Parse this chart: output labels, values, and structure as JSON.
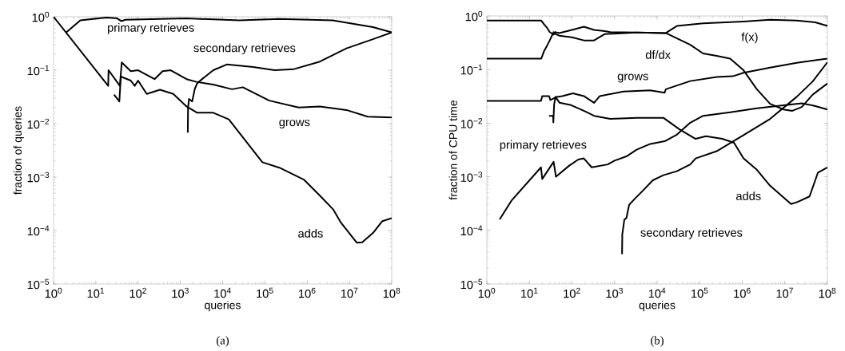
{
  "chart_data": [
    {
      "type": "line",
      "xlabel": "queries",
      "ylabel": "fraction of queries",
      "log": "xy",
      "annotations": [
        "(a)"
      ],
      "xlim": [
        1,
        100000000
      ],
      "ylim": [
        1e-05,
        1
      ],
      "xticks": [
        {
          "value": 1,
          "label": "10$^{0}$"
        },
        {
          "value": 10,
          "label": "10$^{1}$"
        },
        {
          "value": 100,
          "label": "10$^{2}$"
        },
        {
          "value": 1000,
          "label": "10$^{3}$"
        },
        {
          "value": 10000,
          "label": "10$^{4}$"
        },
        {
          "value": 100000,
          "label": "10$^{5}$"
        },
        {
          "value": 1000000,
          "label": "10$^{6}$"
        },
        {
          "value": 10000000,
          "label": "10$^{7}$"
        },
        {
          "value": 100000000,
          "label": "10$^{8}$"
        }
      ],
      "yticks": [
        {
          "value": 1e-05,
          "label": "10$^{−5}$"
        },
        {
          "value": 0.0001,
          "label": "10$^{−4}$"
        },
        {
          "value": 0.001,
          "label": "10$^{−3}$"
        },
        {
          "value": 0.01,
          "label": "10$^{−2}$"
        },
        {
          "value": 0.1,
          "label": "10$^{−1}$"
        },
        {
          "value": 1,
          "label": "10$^{0}$"
        }
      ],
      "series": [
        {
          "name": "primary retrieves",
          "color": "#000000",
          "x": [
            2,
            4.3,
            18,
            32,
            40,
            50,
            1400,
            25000,
            220000,
            4000000,
            36000000,
            100000000
          ],
          "values": [
            0.51,
            0.86,
            0.97,
            0.93,
            0.83,
            0.88,
            0.93,
            0.86,
            0.91,
            0.86,
            0.64,
            0.51
          ]
        },
        {
          "name": "secondary retrieves",
          "color": "#000000",
          "x": [
            1500,
            1520,
            1600,
            1900,
            2200,
            2500,
            3400,
            6000,
            12500,
            53000,
            170000,
            470000,
            2000000,
            8500000,
            36000000,
            100000000
          ],
          "values": [
            0.0068,
            0.02,
            0.029,
            0.026,
            0.045,
            0.057,
            0.07,
            0.1,
            0.128,
            0.115,
            0.1,
            0.104,
            0.145,
            0.256,
            0.38,
            0.51
          ]
        },
        {
          "name": "grows",
          "color": "#000000",
          "x": [
            1,
            19.6,
            20,
            37,
            41,
            67,
            100,
            245,
            380,
            590,
            1400,
            2500,
            6000,
            16600,
            30000,
            127000,
            630000,
            2000000,
            8500000,
            27000000,
            100000000
          ],
          "values": [
            1,
            0.051,
            0.1,
            0.051,
            0.14,
            0.096,
            0.1,
            0.068,
            0.096,
            0.1,
            0.068,
            0.06,
            0.054,
            0.044,
            0.048,
            0.027,
            0.02,
            0.021,
            0.018,
            0.0135,
            0.013
          ]
        },
        {
          "name": "adds",
          "color": "#000000",
          "x": [
            27,
            36,
            39,
            67,
            83,
            100,
            160,
            330,
            680,
            1400,
            2500,
            6000,
            14000,
            87000,
            220000,
            830000,
            2000000,
            4100000,
            6300000,
            15000000,
            20000000,
            36000000,
            60000000,
            100000000
          ],
          "values": [
            0.035,
            0.026,
            0.076,
            0.064,
            0.051,
            0.064,
            0.036,
            0.043,
            0.036,
            0.021,
            0.016,
            0.016,
            0.012,
            0.0019,
            0.0015,
            0.0009,
            0.00045,
            0.00025,
            0.00014,
            5.9e-05,
            6e-05,
            9e-05,
            0.00015,
            0.00017
          ]
        }
      ]
    },
    {
      "type": "line",
      "xlabel": "queries",
      "ylabel": "fraction of CPU time",
      "log": "xy",
      "annotations": [
        "(b)"
      ],
      "xlim": [
        1,
        100000000
      ],
      "ylim": [
        1e-05,
        1
      ],
      "xticks": [
        {
          "value": 1,
          "label": "10$^{0}$"
        },
        {
          "value": 10,
          "label": "10$^{1}$"
        },
        {
          "value": 100,
          "label": "10$^{2}$"
        },
        {
          "value": 1000,
          "label": "10$^{3}$"
        },
        {
          "value": 10000,
          "label": "10$^{4}$"
        },
        {
          "value": 100000,
          "label": "10$^{5}$"
        },
        {
          "value": 1000000,
          "label": "10$^{6}$"
        },
        {
          "value": 10000000,
          "label": "10$^{7}$"
        },
        {
          "value": 100000000,
          "label": "10$^{8}$"
        }
      ],
      "yticks": [
        {
          "value": 1e-05,
          "label": "10$^{−5}$"
        },
        {
          "value": 0.0001,
          "label": "10$^{−4}$"
        },
        {
          "value": 0.001,
          "label": "10$^{−3}$"
        },
        {
          "value": 0.01,
          "label": "10$^{−2}$"
        },
        {
          "value": 0.1,
          "label": "10$^{−1}$"
        },
        {
          "value": 1,
          "label": "10$^{0}$"
        }
      ],
      "series": [
        {
          "name": "f(x)",
          "color": "#000000",
          "x": [
            1,
            19,
            22,
            26,
            30,
            37,
            40,
            50,
            100,
            190,
            330,
            590,
            790,
            3300,
            16000,
            29000,
            120000,
            1070000,
            4500000,
            19000000,
            52000000,
            100000000
          ],
          "values": [
            0.82,
            0.82,
            0.7,
            0.6,
            0.5,
            0.45,
            0.5,
            0.48,
            0.55,
            0.63,
            0.55,
            0.52,
            0.5,
            0.49,
            0.48,
            0.65,
            0.73,
            0.79,
            0.85,
            0.82,
            0.76,
            0.65
          ]
        },
        {
          "name": "df/dx",
          "color": "#000000",
          "x": [
            1,
            19,
            22,
            26,
            30,
            37,
            40,
            50,
            100,
            190,
            330,
            590,
            3300,
            16000,
            60000,
            120000,
            250000,
            520000,
            1070000,
            2200000,
            4500000,
            9300000,
            15000000,
            25000000,
            45000000,
            100000000
          ],
          "values": [
            0.16,
            0.16,
            0.22,
            0.28,
            0.35,
            0.5,
            0.46,
            0.43,
            0.4,
            0.35,
            0.35,
            0.46,
            0.49,
            0.48,
            0.29,
            0.2,
            0.18,
            0.16,
            0.097,
            0.043,
            0.023,
            0.018,
            0.017,
            0.02,
            0.034,
            0.055
          ]
        },
        {
          "name": "grows",
          "color": "#000000",
          "x": [
            1,
            18.7,
            20,
            29,
            31,
            44,
            59,
            105,
            190,
            330,
            450,
            1600,
            6900,
            15000,
            16000,
            60000,
            250000,
            600000,
            1070000,
            4500000,
            19000000,
            100000000
          ],
          "values": [
            0.026,
            0.026,
            0.032,
            0.032,
            0.027,
            0.031,
            0.032,
            0.036,
            0.032,
            0.024,
            0.032,
            0.039,
            0.041,
            0.037,
            0.043,
            0.061,
            0.073,
            0.075,
            0.087,
            0.109,
            0.134,
            0.16
          ]
        },
        {
          "name": "primary retrieves",
          "color": "#000000",
          "x": [
            2,
            3.8,
            18.7,
            20,
            37,
            42,
            85,
            140,
            190,
            290,
            690,
            1000,
            1900,
            3300,
            6900,
            15000,
            29000,
            60000,
            120000,
            520000,
            2200000,
            9300000,
            25000000,
            50000000,
            100000000
          ],
          "values": [
            0.00016,
            0.00036,
            0.0015,
            0.00091,
            0.0019,
            0.001,
            0.0016,
            0.0021,
            0.0022,
            0.0015,
            0.0017,
            0.002,
            0.0024,
            0.0032,
            0.0041,
            0.0046,
            0.0061,
            0.0102,
            0.0137,
            0.016,
            0.019,
            0.0216,
            0.0235,
            0.021,
            0.018
          ]
        },
        {
          "name": "adds",
          "color": "#000000",
          "x": [
            29,
            36,
            36.5,
            38,
            41,
            51,
            91,
            190,
            330,
            790,
            3300,
            14000,
            34000,
            80000,
            140000,
            340000,
            640000,
            1070000,
            2200000,
            4500000,
            14000000,
            20000000,
            38000000,
            60000000,
            100000000
          ],
          "values": [
            0.0137,
            0.0137,
            0.0103,
            0.022,
            0.031,
            0.024,
            0.022,
            0.017,
            0.0137,
            0.012,
            0.0126,
            0.0126,
            0.0076,
            0.0051,
            0.0057,
            0.0051,
            0.0043,
            0.0022,
            0.00135,
            0.00068,
            0.00031,
            0.00034,
            0.00043,
            0.0012,
            0.0015
          ]
        },
        {
          "name": "secondary retrieves",
          "color": "#000000",
          "x": [
            1500,
            1520,
            1700,
            1900,
            2200,
            2900,
            4500,
            7900,
            14000,
            29000,
            60000,
            80000,
            250000,
            1070000,
            4500000,
            19000000,
            45000000,
            100000000
          ],
          "values": [
            3.6e-05,
            8.5e-05,
            0.00016,
            0.00017,
            0.0003,
            0.00038,
            0.00054,
            0.00086,
            0.00107,
            0.00127,
            0.0017,
            0.0022,
            0.003,
            0.006,
            0.012,
            0.031,
            0.06,
            0.137
          ]
        }
      ]
    }
  ]
}
